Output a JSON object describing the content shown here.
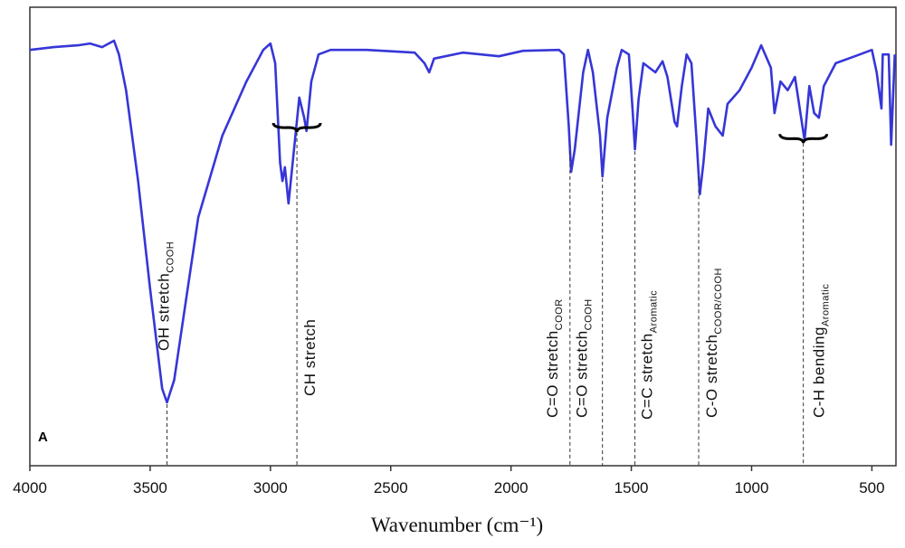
{
  "chart_data": {
    "type": "line",
    "xlabel": "Wavenumber (cm⁻¹)",
    "panel_label": "A",
    "color": "#3636d8",
    "xlim": [
      4000,
      400
    ],
    "ylim": [
      0,
      100
    ],
    "xticks": [
      4000,
      3500,
      3000,
      2500,
      2000,
      1500,
      1000,
      500
    ],
    "x": [
      4000,
      3900,
      3800,
      3750,
      3700,
      3650,
      3630,
      3600,
      3550,
      3500,
      3450,
      3430,
      3400,
      3350,
      3300,
      3200,
      3100,
      3030,
      3000,
      2980,
      2960,
      2950,
      2940,
      2925,
      2900,
      2880,
      2860,
      2850,
      2830,
      2800,
      2750,
      2600,
      2400,
      2360,
      2340,
      2320,
      2200,
      2050,
      1950,
      1800,
      1780,
      1760,
      1750,
      1735,
      1700,
      1680,
      1660,
      1630,
      1620,
      1600,
      1560,
      1540,
      1510,
      1495,
      1485,
      1470,
      1450,
      1400,
      1370,
      1350,
      1320,
      1310,
      1290,
      1270,
      1250,
      1230,
      1215,
      1200,
      1180,
      1150,
      1120,
      1100,
      1050,
      1000,
      960,
      920,
      905,
      880,
      850,
      820,
      800,
      780,
      760,
      740,
      720,
      700,
      650,
      550,
      500,
      480,
      460,
      455,
      430,
      420,
      405
    ],
    "values": [
      90.7,
      91.3,
      91.7,
      92.1,
      91.3,
      92.7,
      89.7,
      81.9,
      62.1,
      38.5,
      16.8,
      13.8,
      18.7,
      36.5,
      54.2,
      72.0,
      83.8,
      90.7,
      92.1,
      87.8,
      66.1,
      62.1,
      65.1,
      57.2,
      70.0,
      80.3,
      75.9,
      73.0,
      83.8,
      89.7,
      90.7,
      90.7,
      90.1,
      87.8,
      85.8,
      88.8,
      90.1,
      89.3,
      90.5,
      90.7,
      89.7,
      74.0,
      64.1,
      69.0,
      85.8,
      90.7,
      85.8,
      72.0,
      63.1,
      75.9,
      86.8,
      90.7,
      89.7,
      77.9,
      69.0,
      79.9,
      87.8,
      85.8,
      88.2,
      84.8,
      75.0,
      74.0,
      82.8,
      89.7,
      87.8,
      72.0,
      59.2,
      66.1,
      77.9,
      74.0,
      72.0,
      78.9,
      81.9,
      86.8,
      91.7,
      86.8,
      76.9,
      83.8,
      81.9,
      84.8,
      77.9,
      71.0,
      82.8,
      76.9,
      75.9,
      82.8,
      87.8,
      89.7,
      90.7,
      85.8,
      77.9,
      89.7,
      89.7,
      70.0,
      89.7
    ],
    "annotations": [
      {
        "text": "OH stretch",
        "sub": "COOH",
        "x": 3430
      },
      {
        "text": "CH stretch",
        "x": 2890
      },
      {
        "text": "C=O stretch",
        "sub": "COOR",
        "x": 1755
      },
      {
        "text": "C=O stretch",
        "sub": "COOH",
        "x": 1620
      },
      {
        "text": "C=C stretch",
        "sub": "Aromatic",
        "x": 1485
      },
      {
        "text": "C-O stretch",
        "sub": "COOR/COOH",
        "x": 1220
      },
      {
        "text": "C-H bending",
        "sub": "Aromatic",
        "x": 785
      }
    ]
  }
}
